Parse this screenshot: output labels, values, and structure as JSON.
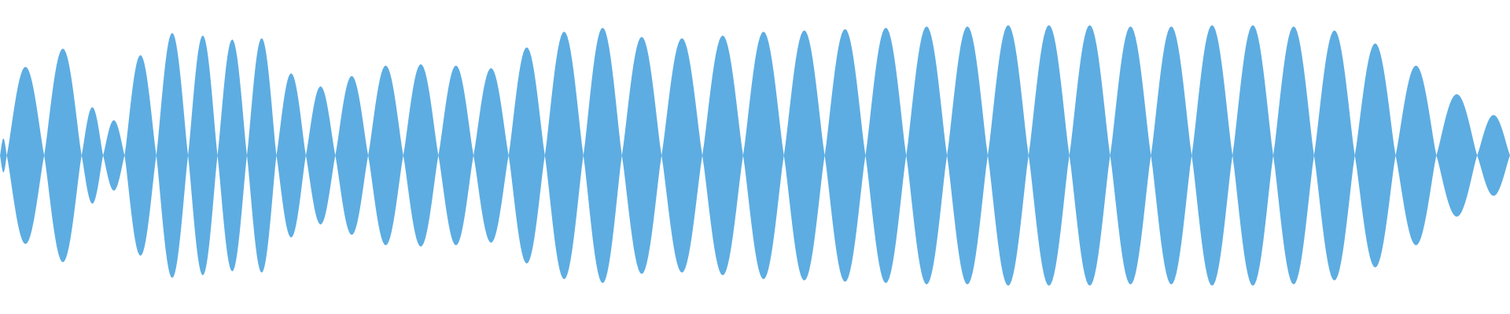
{
  "waveform": {
    "color": "#5DADE2",
    "background": "#ffffff",
    "lobe_peaks": [
      0.13,
      0.68,
      0.82,
      0.37,
      0.27,
      0.77,
      0.94,
      0.92,
      0.89,
      0.9,
      0.63,
      0.53,
      0.61,
      0.69,
      0.7,
      0.69,
      0.67,
      0.83,
      0.95,
      0.98,
      0.91,
      0.9,
      0.92,
      0.95,
      0.96,
      0.97,
      0.98,
      0.99,
      0.99,
      1.0,
      1.0,
      1.0,
      0.99,
      0.99,
      1.0,
      1.0,
      0.99,
      0.96,
      0.86,
      0.69,
      0.47,
      0.31
    ],
    "lobe_widths": [
      0.6,
      3.3,
      3.3,
      1.9,
      1.9,
      2.8,
      2.8,
      2.6,
      2.6,
      2.6,
      2.6,
      2.6,
      2.9,
      3.1,
      3.1,
      3.1,
      3.1,
      3.2,
      3.4,
      3.4,
      3.5,
      3.6,
      3.6,
      3.6,
      3.6,
      3.6,
      3.6,
      3.6,
      3.6,
      3.6,
      3.6,
      3.6,
      3.6,
      3.6,
      3.6,
      3.6,
      3.6,
      3.6,
      3.6,
      3.6,
      3.6,
      2.9
    ]
  }
}
